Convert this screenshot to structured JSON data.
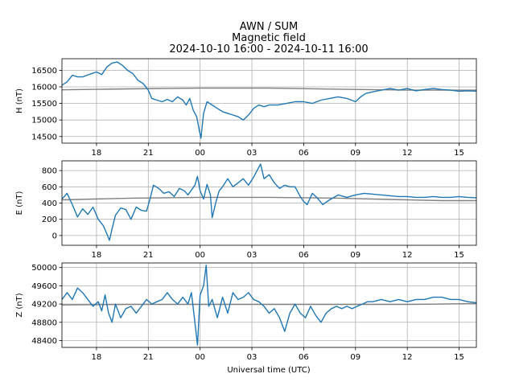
{
  "chart_data": {
    "type": "line",
    "title_lines": [
      "AWN / SUM",
      "Magnetic field",
      "2024-10-10 16:00 - 2024-10-11 16:00"
    ],
    "xlabel": "Universal time (UTC)",
    "x_range_hours": [
      16,
      40
    ],
    "x_ticks": [
      {
        "h": 18,
        "label": "18"
      },
      {
        "h": 21,
        "label": "21"
      },
      {
        "h": 24,
        "label": "00"
      },
      {
        "h": 27,
        "label": "03"
      },
      {
        "h": 30,
        "label": "06"
      },
      {
        "h": 33,
        "label": "09"
      },
      {
        "h": 36,
        "label": "12"
      },
      {
        "h": 39,
        "label": "15"
      }
    ],
    "colors": {
      "series": "#1f77b4",
      "baseline": "#808080",
      "grid": "#b0b0b0"
    },
    "panels": [
      {
        "name": "H",
        "ylabel": "H (nT)",
        "ylim": [
          14300,
          16850
        ],
        "yticks": [
          14500,
          15000,
          15500,
          16000,
          16500
        ],
        "ytick_labels": [
          "14500",
          "15000",
          "15500",
          "16000",
          "16500"
        ],
        "series": {
          "name": "H",
          "points": [
            [
              16.0,
              16050
            ],
            [
              16.3,
              16150
            ],
            [
              16.6,
              16350
            ],
            [
              16.9,
              16300
            ],
            [
              17.2,
              16300
            ],
            [
              17.6,
              16380
            ],
            [
              18.0,
              16450
            ],
            [
              18.3,
              16370
            ],
            [
              18.6,
              16600
            ],
            [
              18.9,
              16720
            ],
            [
              19.2,
              16750
            ],
            [
              19.5,
              16650
            ],
            [
              19.8,
              16500
            ],
            [
              20.1,
              16400
            ],
            [
              20.4,
              16200
            ],
            [
              20.7,
              16100
            ],
            [
              21.0,
              15900
            ],
            [
              21.2,
              15650
            ],
            [
              21.5,
              15600
            ],
            [
              21.8,
              15550
            ],
            [
              22.1,
              15620
            ],
            [
              22.4,
              15550
            ],
            [
              22.7,
              15700
            ],
            [
              23.0,
              15600
            ],
            [
              23.2,
              15450
            ],
            [
              23.4,
              15650
            ],
            [
              23.6,
              15300
            ],
            [
              23.8,
              15100
            ],
            [
              23.95,
              14700
            ],
            [
              24.05,
              14450
            ],
            [
              24.2,
              15200
            ],
            [
              24.4,
              15550
            ],
            [
              24.7,
              15450
            ],
            [
              25.0,
              15350
            ],
            [
              25.3,
              15250
            ],
            [
              25.6,
              15200
            ],
            [
              25.9,
              15150
            ],
            [
              26.2,
              15100
            ],
            [
              26.5,
              15000
            ],
            [
              26.8,
              15150
            ],
            [
              27.1,
              15350
            ],
            [
              27.4,
              15450
            ],
            [
              27.7,
              15400
            ],
            [
              28.0,
              15450
            ],
            [
              28.5,
              15450
            ],
            [
              29.0,
              15500
            ],
            [
              29.5,
              15550
            ],
            [
              30.0,
              15550
            ],
            [
              30.5,
              15500
            ],
            [
              31.0,
              15600
            ],
            [
              31.5,
              15650
            ],
            [
              32.0,
              15700
            ],
            [
              32.5,
              15650
            ],
            [
              33.0,
              15550
            ],
            [
              33.3,
              15700
            ],
            [
              33.6,
              15800
            ],
            [
              34.0,
              15850
            ],
            [
              34.5,
              15900
            ],
            [
              35.0,
              15950
            ],
            [
              35.5,
              15900
            ],
            [
              36.0,
              15950
            ],
            [
              36.5,
              15880
            ],
            [
              37.0,
              15920
            ],
            [
              37.5,
              15950
            ],
            [
              38.0,
              15920
            ],
            [
              38.5,
              15900
            ],
            [
              39.0,
              15870
            ],
            [
              39.5,
              15880
            ],
            [
              40.0,
              15870
            ]
          ]
        },
        "baseline": {
          "points": [
            [
              16,
              15910
            ],
            [
              20,
              15940
            ],
            [
              24,
              15960
            ],
            [
              28,
              15960
            ],
            [
              32,
              15930
            ],
            [
              36,
              15900
            ],
            [
              40,
              15900
            ]
          ]
        }
      },
      {
        "name": "E",
        "ylabel": "E (nT)",
        "ylim": [
          -120,
          920
        ],
        "yticks": [
          0,
          200,
          400,
          600,
          800
        ],
        "ytick_labels": [
          "0",
          "200",
          "400",
          "600",
          "800"
        ],
        "series": {
          "name": "E",
          "points": [
            [
              16.0,
              450
            ],
            [
              16.3,
              520
            ],
            [
              16.6,
              380
            ],
            [
              16.9,
              230
            ],
            [
              17.2,
              330
            ],
            [
              17.5,
              260
            ],
            [
              17.8,
              350
            ],
            [
              18.1,
              200
            ],
            [
              18.4,
              120
            ],
            [
              18.6,
              20
            ],
            [
              18.75,
              -60
            ],
            [
              18.9,
              80
            ],
            [
              19.1,
              250
            ],
            [
              19.4,
              340
            ],
            [
              19.7,
              320
            ],
            [
              20.0,
              200
            ],
            [
              20.3,
              350
            ],
            [
              20.6,
              310
            ],
            [
              20.9,
              300
            ],
            [
              21.1,
              450
            ],
            [
              21.3,
              620
            ],
            [
              21.6,
              580
            ],
            [
              21.9,
              520
            ],
            [
              22.2,
              540
            ],
            [
              22.5,
              480
            ],
            [
              22.8,
              580
            ],
            [
              23.1,
              550
            ],
            [
              23.3,
              500
            ],
            [
              23.5,
              560
            ],
            [
              23.7,
              620
            ],
            [
              23.85,
              730
            ],
            [
              24.0,
              550
            ],
            [
              24.2,
              450
            ],
            [
              24.4,
              630
            ],
            [
              24.6,
              500
            ],
            [
              24.7,
              220
            ],
            [
              24.9,
              400
            ],
            [
              25.1,
              550
            ],
            [
              25.3,
              600
            ],
            [
              25.6,
              700
            ],
            [
              25.9,
              600
            ],
            [
              26.2,
              650
            ],
            [
              26.5,
              700
            ],
            [
              26.8,
              620
            ],
            [
              27.1,
              720
            ],
            [
              27.3,
              800
            ],
            [
              27.5,
              880
            ],
            [
              27.7,
              700
            ],
            [
              28.0,
              750
            ],
            [
              28.3,
              650
            ],
            [
              28.6,
              580
            ],
            [
              28.9,
              620
            ],
            [
              29.2,
              600
            ],
            [
              29.5,
              600
            ],
            [
              29.8,
              480
            ],
            [
              30.0,
              420
            ],
            [
              30.2,
              380
            ],
            [
              30.5,
              520
            ],
            [
              30.8,
              460
            ],
            [
              31.1,
              380
            ],
            [
              31.5,
              440
            ],
            [
              32.0,
              500
            ],
            [
              32.5,
              470
            ],
            [
              33.0,
              500
            ],
            [
              33.5,
              520
            ],
            [
              34.0,
              510
            ],
            [
              34.5,
              500
            ],
            [
              35.0,
              490
            ],
            [
              35.5,
              480
            ],
            [
              36.0,
              480
            ],
            [
              36.5,
              470
            ],
            [
              37.0,
              470
            ],
            [
              37.5,
              480
            ],
            [
              38.0,
              470
            ],
            [
              38.5,
              470
            ],
            [
              39.0,
              480
            ],
            [
              39.5,
              470
            ],
            [
              40.0,
              465
            ]
          ]
        },
        "baseline": {
          "points": [
            [
              16,
              440
            ],
            [
              20,
              460
            ],
            [
              24,
              470
            ],
            [
              28,
              470
            ],
            [
              32,
              460
            ],
            [
              34,
              450
            ],
            [
              36,
              440
            ],
            [
              38,
              430
            ],
            [
              40,
              430
            ]
          ]
        }
      },
      {
        "name": "Z",
        "ylabel": "Z (nT)",
        "ylim": [
          48250,
          50100
        ],
        "yticks": [
          48400,
          48800,
          49200,
          49600,
          50000
        ],
        "ytick_labels": [
          "48400",
          "48800",
          "49200",
          "49600",
          "50000"
        ],
        "series": {
          "name": "Z",
          "points": [
            [
              16.0,
              49300
            ],
            [
              16.3,
              49450
            ],
            [
              16.6,
              49300
            ],
            [
              16.9,
              49550
            ],
            [
              17.2,
              49450
            ],
            [
              17.5,
              49300
            ],
            [
              17.8,
              49150
            ],
            [
              18.1,
              49250
            ],
            [
              18.3,
              49050
            ],
            [
              18.5,
              49400
            ],
            [
              18.7,
              49000
            ],
            [
              18.9,
              48800
            ],
            [
              19.1,
              49200
            ],
            [
              19.4,
              48900
            ],
            [
              19.7,
              49100
            ],
            [
              20.0,
              49150
            ],
            [
              20.3,
              49000
            ],
            [
              20.6,
              49150
            ],
            [
              20.9,
              49300
            ],
            [
              21.2,
              49200
            ],
            [
              21.5,
              49250
            ],
            [
              21.8,
              49300
            ],
            [
              22.1,
              49450
            ],
            [
              22.4,
              49300
            ],
            [
              22.7,
              49200
            ],
            [
              23.0,
              49350
            ],
            [
              23.3,
              49200
            ],
            [
              23.5,
              49450
            ],
            [
              23.7,
              48800
            ],
            [
              23.85,
              48300
            ],
            [
              24.0,
              49400
            ],
            [
              24.2,
              49600
            ],
            [
              24.35,
              50050
            ],
            [
              24.5,
              49150
            ],
            [
              24.7,
              49300
            ],
            [
              25.0,
              48900
            ],
            [
              25.3,
              49350
            ],
            [
              25.6,
              49000
            ],
            [
              25.9,
              49450
            ],
            [
              26.2,
              49300
            ],
            [
              26.5,
              49350
            ],
            [
              26.8,
              49450
            ],
            [
              27.1,
              49300
            ],
            [
              27.4,
              49250
            ],
            [
              27.7,
              49150
            ],
            [
              28.0,
              49000
            ],
            [
              28.3,
              49100
            ],
            [
              28.6,
              48900
            ],
            [
              28.9,
              48600
            ],
            [
              29.2,
              49000
            ],
            [
              29.5,
              49200
            ],
            [
              29.8,
              49000
            ],
            [
              30.1,
              48900
            ],
            [
              30.4,
              49150
            ],
            [
              30.7,
              48950
            ],
            [
              31.0,
              48800
            ],
            [
              31.3,
              49000
            ],
            [
              31.6,
              49100
            ],
            [
              31.9,
              49150
            ],
            [
              32.2,
              49100
            ],
            [
              32.5,
              49150
            ],
            [
              32.8,
              49100
            ],
            [
              33.1,
              49150
            ],
            [
              33.4,
              49200
            ],
            [
              33.7,
              49250
            ],
            [
              34.0,
              49250
            ],
            [
              34.5,
              49300
            ],
            [
              35.0,
              49250
            ],
            [
              35.5,
              49300
            ],
            [
              36.0,
              49250
            ],
            [
              36.5,
              49300
            ],
            [
              37.0,
              49300
            ],
            [
              37.5,
              49350
            ],
            [
              38.0,
              49350
            ],
            [
              38.5,
              49300
            ],
            [
              39.0,
              49300
            ],
            [
              39.5,
              49250
            ],
            [
              40.0,
              49230
            ]
          ]
        },
        "baseline": {
          "points": [
            [
              16,
              49180
            ],
            [
              20,
              49190
            ],
            [
              24,
              49190
            ],
            [
              28,
              49190
            ],
            [
              32,
              49190
            ],
            [
              36,
              49190
            ],
            [
              40,
              49210
            ]
          ]
        }
      }
    ]
  }
}
